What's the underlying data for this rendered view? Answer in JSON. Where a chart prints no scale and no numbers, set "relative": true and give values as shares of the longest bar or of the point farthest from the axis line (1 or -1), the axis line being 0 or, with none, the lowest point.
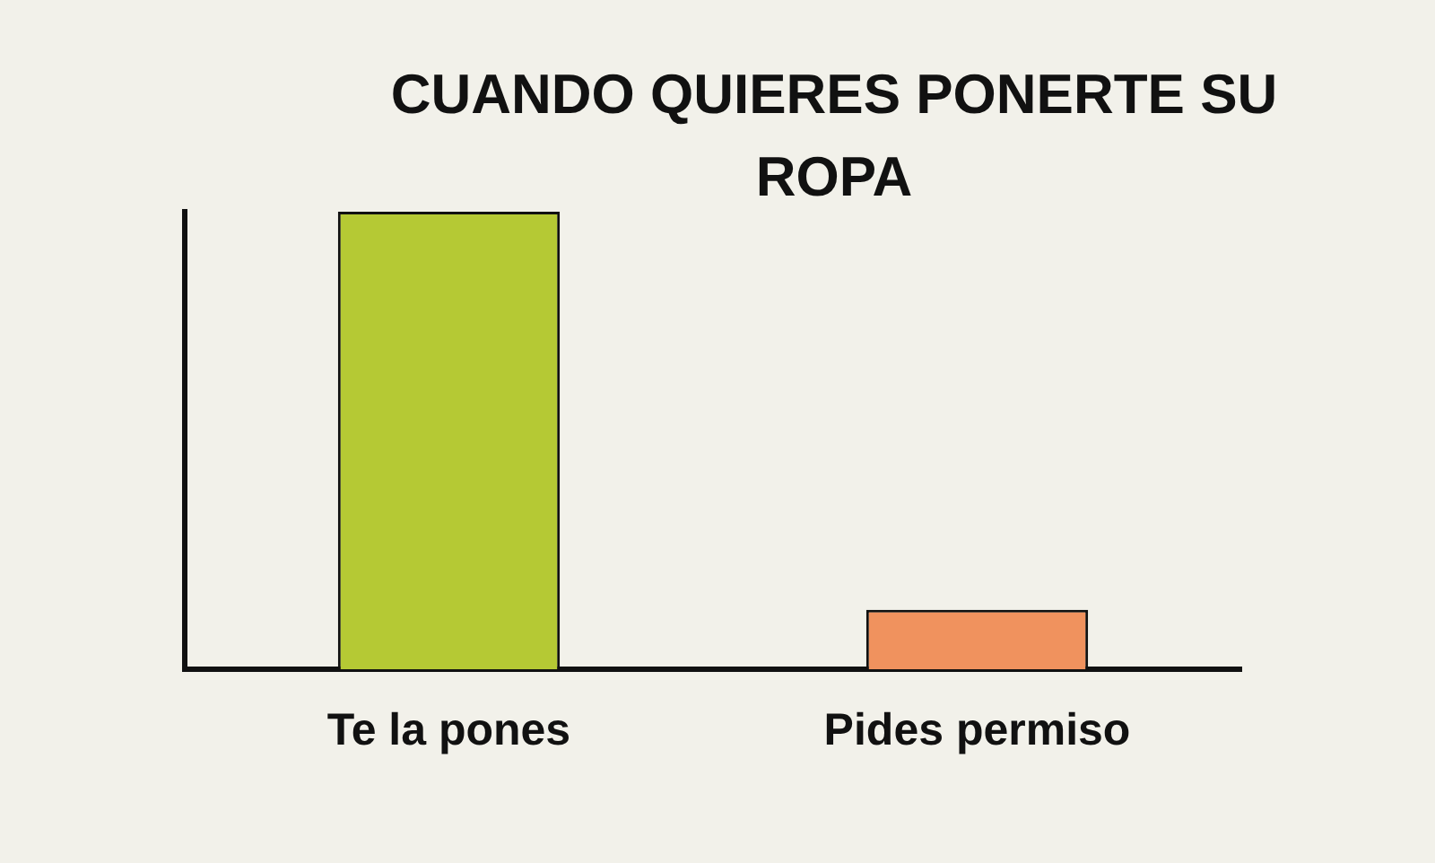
{
  "chart_data": {
    "type": "bar",
    "title": "CUANDO QUIERES PONERTE SU ROPA",
    "categories": [
      "Te la pones",
      "Pides permiso"
    ],
    "values": [
      1,
      0.13
    ],
    "colors": [
      "#b5c934",
      "#f0925e"
    ],
    "relative": true,
    "grid": false,
    "legend": false
  }
}
